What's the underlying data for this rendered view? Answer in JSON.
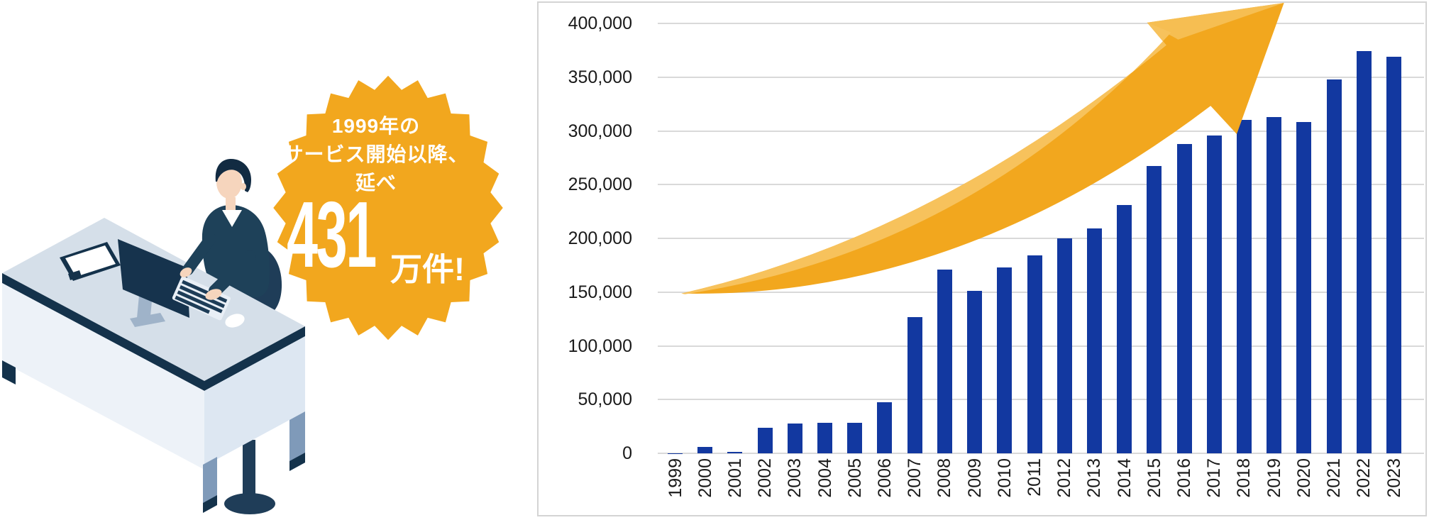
{
  "page": {
    "background": "#FFFFFF"
  },
  "badge": {
    "line1": "1999年の",
    "line2": "サービス開始以降、",
    "line3": "延べ",
    "big_number": "431",
    "unit": "万件!",
    "bg_color": "#F2A71E",
    "text_color": "#FFFFFF"
  },
  "illustration": {
    "label": "person-working-at-desk"
  },
  "colors": {
    "navy_dark": "#14324B",
    "navy_sweater": "#1E4159",
    "desk_top": "#D5DFE9",
    "skin": "#F6D5BD"
  },
  "chart_data": {
    "type": "bar",
    "title": "",
    "xlabel": "",
    "ylabel": "",
    "categories": [
      "1999",
      "2000",
      "2001",
      "2002",
      "2003",
      "2004",
      "2005",
      "2006",
      "2007",
      "2008",
      "2009",
      "2010",
      "2011",
      "2012",
      "2013",
      "2014",
      "2015",
      "2016",
      "2017",
      "2018",
      "2019",
      "2020",
      "2021",
      "2022",
      "2023"
    ],
    "values": [
      300,
      6000,
      1500,
      24000,
      27500,
      28500,
      28500,
      47500,
      127000,
      171000,
      151000,
      173000,
      184000,
      200000,
      209000,
      231000,
      267000,
      288000,
      296000,
      310000,
      313000,
      308000,
      348000,
      374000,
      369000
    ],
    "ylim": [
      0,
      400000
    ],
    "ytick_step": 50000,
    "ytick_labels": [
      "0",
      "50,000",
      "100,000",
      "150,000",
      "200,000",
      "250,000",
      "300,000",
      "350,000",
      "400,000"
    ],
    "grid": true,
    "legend": false,
    "bar_color": "#1238A0",
    "gridline_color": "#D9D9D9",
    "plot_border_color": "#D4D4D4",
    "axis_text_color": "#1A1A1A",
    "arrow": {
      "color": "#F2A71E",
      "highlight_color": "#F7C25C"
    }
  }
}
